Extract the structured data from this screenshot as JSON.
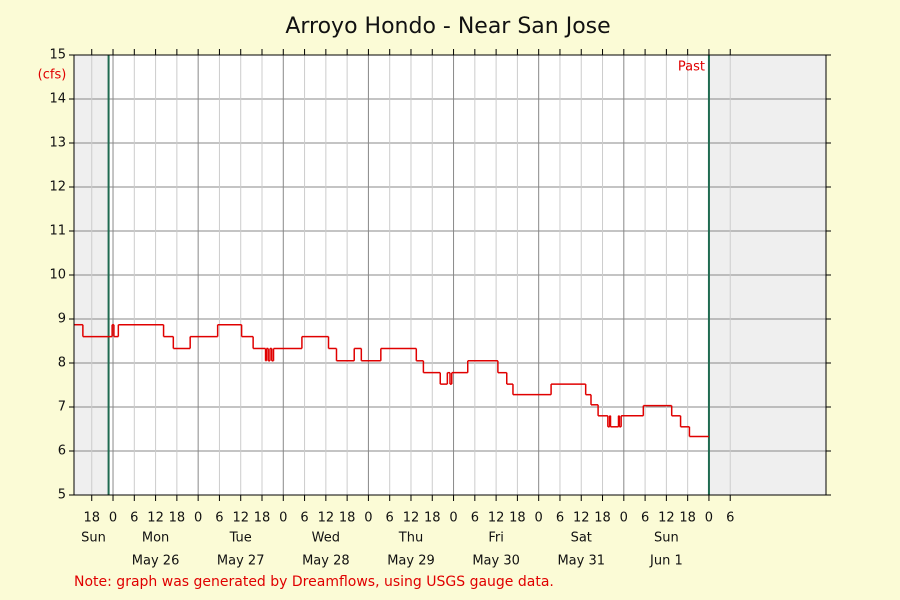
{
  "chart_data": {
    "type": "step",
    "title": "Arroyo Hondo - Near San Jose",
    "y_unit_label": "(cfs)",
    "past_label": "Past",
    "note": "Note: graph was generated by Dreamflows, using USGS gauge data.",
    "color": "#e00000",
    "xlim": [
      -11,
      201
    ],
    "ylim": [
      5,
      15
    ],
    "yticks": [
      5,
      6,
      7,
      8,
      9,
      10,
      11,
      12,
      13,
      14,
      15
    ],
    "xticks": [
      {
        "value": -6,
        "label": "18"
      },
      {
        "value": 0,
        "label": "0"
      },
      {
        "value": 6,
        "label": "6"
      },
      {
        "value": 12,
        "label": "12"
      },
      {
        "value": 18,
        "label": "18"
      },
      {
        "value": 24,
        "label": "0"
      },
      {
        "value": 30,
        "label": "6"
      },
      {
        "value": 36,
        "label": "12"
      },
      {
        "value": 42,
        "label": "18"
      },
      {
        "value": 48,
        "label": "0"
      },
      {
        "value": 54,
        "label": "6"
      },
      {
        "value": 60,
        "label": "12"
      },
      {
        "value": 66,
        "label": "18"
      },
      {
        "value": 72,
        "label": "0"
      },
      {
        "value": 78,
        "label": "6"
      },
      {
        "value": 84,
        "label": "12"
      },
      {
        "value": 90,
        "label": "18"
      },
      {
        "value": 96,
        "label": "0"
      },
      {
        "value": 102,
        "label": "6"
      },
      {
        "value": 108,
        "label": "12"
      },
      {
        "value": 114,
        "label": "18"
      },
      {
        "value": 120,
        "label": "0"
      },
      {
        "value": 126,
        "label": "6"
      },
      {
        "value": 132,
        "label": "12"
      },
      {
        "value": 138,
        "label": "18"
      },
      {
        "value": 144,
        "label": "0"
      },
      {
        "value": 150,
        "label": "6"
      },
      {
        "value": 156,
        "label": "12"
      },
      {
        "value": 162,
        "label": "18"
      },
      {
        "value": 168,
        "label": "0"
      },
      {
        "value": 174,
        "label": "6"
      }
    ],
    "days": [
      {
        "weekday": "Sun"
      },
      {
        "weekday": "Mon",
        "date": "May 26"
      },
      {
        "weekday": "Tue",
        "date": "May 27"
      },
      {
        "weekday": "Wed",
        "date": "May 28"
      },
      {
        "weekday": "Thu",
        "date": "May 29"
      },
      {
        "weekday": "Fri",
        "date": "May 30"
      },
      {
        "weekday": "Sat",
        "date": "May 31"
      },
      {
        "weekday": "Sun",
        "date": "Jun 1"
      }
    ],
    "window": [
      -1.25,
      168
    ],
    "x": [
      -11,
      -8.5,
      -0.25,
      0.25,
      1.5,
      14.25,
      17,
      21.75,
      29.5,
      36.25,
      39.5,
      43,
      43.25,
      43.75,
      44.25,
      44.75,
      45.25,
      53.25,
      60.75,
      63,
      68,
      70,
      75.5,
      85.5,
      87.5,
      92.25,
      94.25,
      95,
      95.5,
      100,
      108.5,
      111,
      112.75,
      123.5,
      133.25,
      134.75,
      136.75,
      139.5,
      140,
      140.25,
      142.5,
      142.75,
      143.25,
      149.5,
      157.5,
      160,
      162.5,
      168
    ],
    "values": [
      8.87,
      8.6,
      8.87,
      8.6,
      8.87,
      8.6,
      8.33,
      8.6,
      8.87,
      8.6,
      8.33,
      8.05,
      8.33,
      8.05,
      8.33,
      8.05,
      8.33,
      8.6,
      8.33,
      8.05,
      8.33,
      8.05,
      8.33,
      8.05,
      7.78,
      7.52,
      7.78,
      7.52,
      7.78,
      8.05,
      7.78,
      7.52,
      7.28,
      7.52,
      7.28,
      7.05,
      6.8,
      6.55,
      6.8,
      6.55,
      6.8,
      6.55,
      6.8,
      7.03,
      6.8,
      6.55,
      6.33,
      6.33
    ]
  }
}
